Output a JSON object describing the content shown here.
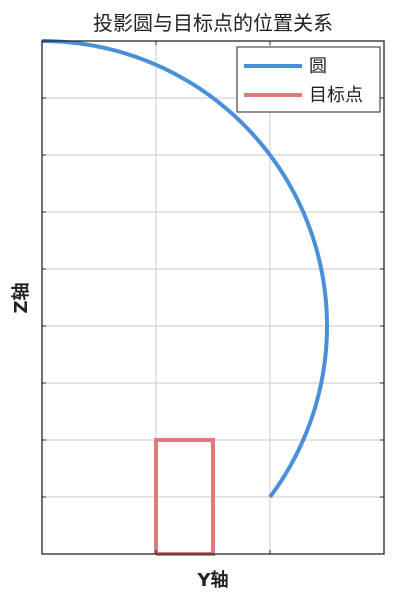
{
  "chart_data": {
    "type": "line",
    "title": "投影圆与目标点的位置关系",
    "xlabel": "Y轴",
    "ylabel": "Z轴",
    "xlim": [
      -3,
      0
    ],
    "ylim": [
      -4.5,
      0
    ],
    "grid": true,
    "x_grid_values": [
      -2,
      -1
    ],
    "y_grid_values": [
      -0.5,
      -1,
      -1.5,
      -2,
      -2.5,
      -3,
      -3.5,
      -4
    ],
    "legend": {
      "placement": "top-right"
    },
    "series": [
      {
        "name": "圆",
        "color": "#4a90d9",
        "shape": "arc",
        "center": [
          -3,
          -2.5
        ],
        "radius": 2.5,
        "angle_start_deg": 90,
        "angle_end_deg": -36.87
      },
      {
        "name": "目标点",
        "color": "#e07a7a",
        "shape": "rectangle",
        "x": [
          -2,
          -2,
          -1.5,
          -1.5,
          -2
        ],
        "y": [
          -4.5,
          -3.5,
          -3.5,
          -4.5,
          -4.5
        ]
      }
    ]
  }
}
